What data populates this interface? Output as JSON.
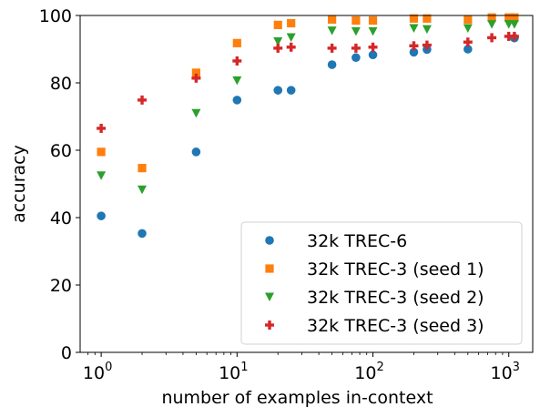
{
  "chart_data": {
    "type": "scatter",
    "title": "",
    "xlabel": "number of examples in-context",
    "ylabel": "accuracy",
    "xscale": "log",
    "xlim": [
      0.7,
      1500
    ],
    "ylim": [
      0,
      100
    ],
    "yticks": [
      0,
      20,
      40,
      60,
      80,
      100
    ],
    "xticks": [
      {
        "value": 1,
        "base": "10",
        "exp": "0"
      },
      {
        "value": 10,
        "base": "10",
        "exp": "1"
      },
      {
        "value": 100,
        "base": "10",
        "exp": "2"
      },
      {
        "value": 1000,
        "base": "10",
        "exp": "3"
      }
    ],
    "grid": false,
    "legend_position": "lower-right",
    "series": [
      {
        "name": "32k TREC-6",
        "marker": "circle",
        "color": "#1f77b4",
        "x": [
          1,
          2,
          5,
          10,
          20,
          25,
          50,
          75,
          100,
          200,
          250,
          500,
          1100
        ],
        "y": [
          40.5,
          35.3,
          59.5,
          74.9,
          77.8,
          77.8,
          85.4,
          87.5,
          88.3,
          89.1,
          89.9,
          90.0,
          93.3
        ]
      },
      {
        "name": "32k TREC-3 (seed 1)",
        "marker": "square",
        "color": "#ff7f0e",
        "x": [
          1,
          2,
          5,
          10,
          20,
          25,
          50,
          75,
          100,
          200,
          250,
          500,
          750,
          1000,
          1100
        ],
        "y": [
          59.5,
          54.7,
          83.0,
          91.8,
          97.2,
          97.7,
          98.8,
          98.5,
          98.5,
          99.1,
          99.1,
          98.8,
          99.4,
          99.4,
          99.4
        ]
      },
      {
        "name": "32k TREC-3 (seed 2)",
        "marker": "triangle-down",
        "color": "#2ca02c",
        "x": [
          1,
          2,
          5,
          10,
          20,
          25,
          50,
          75,
          100,
          200,
          250,
          500,
          750,
          1000,
          1100
        ],
        "y": [
          52.5,
          48.3,
          71.0,
          80.7,
          92.3,
          93.5,
          95.5,
          95.3,
          95.3,
          96.2,
          95.9,
          96.2,
          97.4,
          97.4,
          97.4
        ]
      },
      {
        "name": "32k TREC-3 (seed 3)",
        "marker": "plus",
        "color": "#d62728",
        "x": [
          1,
          2,
          5,
          10,
          20,
          25,
          50,
          75,
          100,
          200,
          250,
          500,
          750,
          1000,
          1100
        ],
        "y": [
          66.5,
          74.9,
          81.4,
          86.5,
          90.3,
          90.6,
          90.3,
          90.3,
          90.6,
          91.0,
          91.2,
          92.1,
          93.4,
          93.8,
          93.8
        ]
      }
    ]
  }
}
